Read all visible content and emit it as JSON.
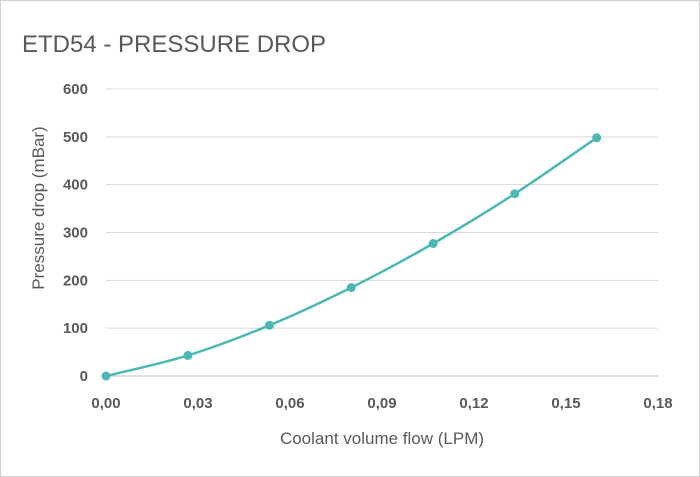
{
  "chart_data": {
    "type": "line",
    "title": "ETD54 - PRESSURE DROP",
    "xlabel": "Coolant volume flow (LPM)",
    "ylabel": "Pressure drop (mBar)",
    "xlim": [
      0,
      0.18
    ],
    "ylim": [
      0,
      600
    ],
    "x_ticks": [
      "0,00",
      "0,03",
      "0,06",
      "0,09",
      "0,12",
      "0,15",
      "0,18"
    ],
    "y_ticks": [
      "0",
      "100",
      "200",
      "300",
      "400",
      "500",
      "600"
    ],
    "grid": true,
    "legend": "none",
    "series_color": "#4db8b3",
    "series": [
      {
        "x": [
          0.0,
          0.0267,
          0.0533,
          0.08,
          0.1067,
          0.1333,
          0.16
        ],
        "values": [
          0,
          43,
          106,
          185,
          277,
          381,
          498
        ]
      }
    ]
  }
}
